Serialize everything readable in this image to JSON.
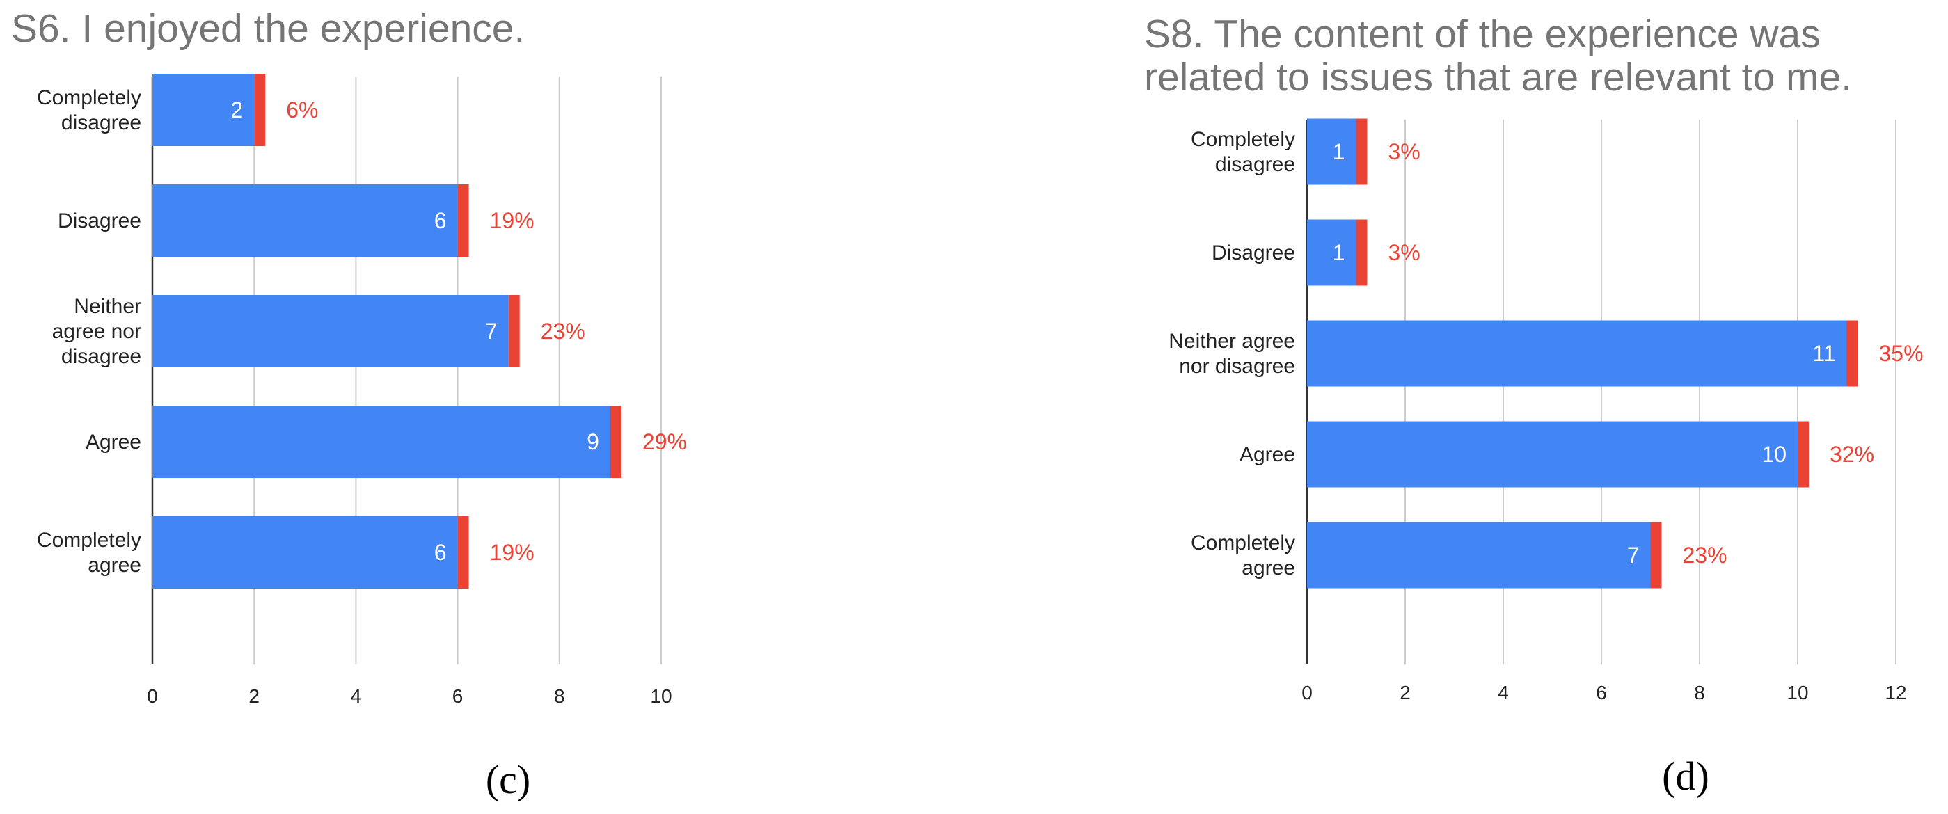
{
  "colors": {
    "bar": "#4285f4",
    "bar_accent": "#ea4335",
    "percent_text": "#ea4335",
    "value_text": "#ffffff",
    "grid": "#cccccc",
    "axis": "#333333",
    "title": "#757575"
  },
  "chart_data": [
    {
      "type": "bar",
      "orientation": "horizontal",
      "panel": "(c)",
      "title": [
        "S6. I enjoyed the experience."
      ],
      "categories": [
        [
          "Completely",
          "disagree"
        ],
        [
          "Disagree"
        ],
        [
          "Neither",
          "agree nor",
          "disagree"
        ],
        [
          "Agree"
        ],
        [
          "Completely",
          "agree"
        ]
      ],
      "values": [
        2,
        6,
        7,
        9,
        6
      ],
      "percent_labels": [
        "6%",
        "19%",
        "23%",
        "29%",
        "19%"
      ],
      "xlim": [
        0,
        10
      ],
      "xticks": [
        0,
        2,
        4,
        6,
        8,
        10
      ],
      "grid": true,
      "xlabel": "",
      "ylabel": ""
    },
    {
      "type": "bar",
      "orientation": "horizontal",
      "panel": "(d)",
      "title": [
        "S8. The content of the experience was",
        "related to issues that are relevant to me."
      ],
      "categories": [
        [
          "Completely",
          "disagree"
        ],
        [
          "Disagree"
        ],
        [
          "Neither agree",
          "nor disagree"
        ],
        [
          "Agree"
        ],
        [
          "Completely",
          "agree"
        ]
      ],
      "values": [
        1,
        1,
        11,
        10,
        7
      ],
      "percent_labels": [
        "3%",
        "3%",
        "35%",
        "32%",
        "23%"
      ],
      "xlim": [
        0,
        12
      ],
      "xticks": [
        0,
        2,
        4,
        6,
        8,
        10,
        12
      ],
      "grid": true,
      "xlabel": "",
      "ylabel": ""
    }
  ]
}
